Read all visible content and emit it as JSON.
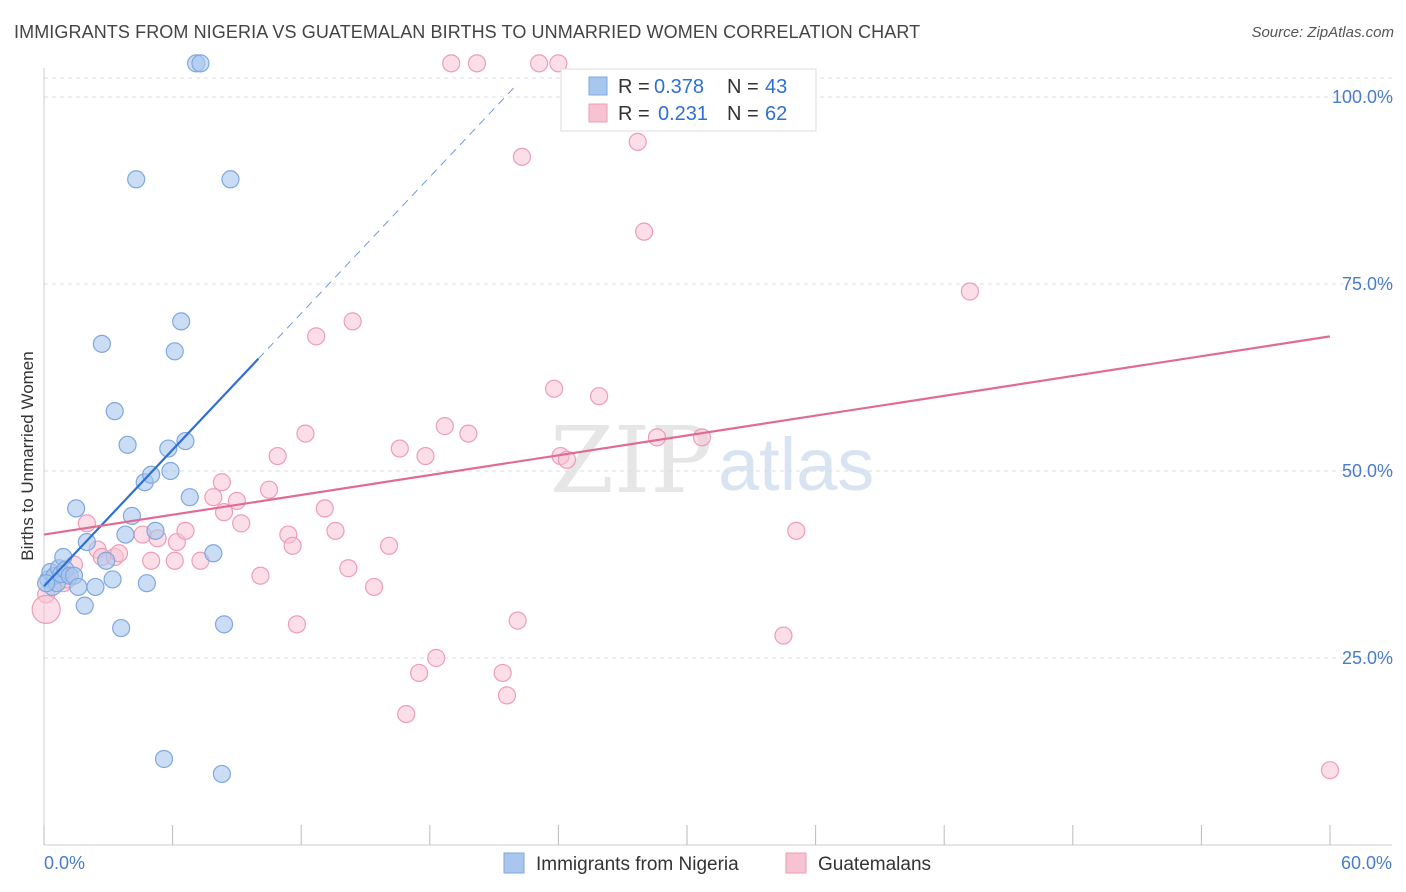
{
  "title": "IMMIGRANTS FROM NIGERIA VS GUATEMALAN BIRTHS TO UNMARRIED WOMEN CORRELATION CHART",
  "source": "Source: ZipAtlas.com",
  "watermark": {
    "zip": "ZIP",
    "atlas": "atlas"
  },
  "colors": {
    "blue_fill": "#a9c7ee",
    "blue_stroke": "#7ea8de",
    "blue_line": "#2f6fd6",
    "pink_fill": "#f7c3d3",
    "pink_stroke": "#ee9db6",
    "pink_line": "#e06b97",
    "grid": "#dddddd",
    "tick_text": "#4a7cc9"
  },
  "legend": {
    "rows": [
      {
        "r_label": "R =",
        "r_value": "0.378",
        "n_label": "N =",
        "n_value": "43"
      },
      {
        "r_label": "R =",
        "r_value": "0.231",
        "n_label": "N =",
        "n_value": "62"
      }
    ]
  },
  "bottom_legend": [
    "Immigrants from Nigeria",
    "Guatemalans"
  ],
  "chart_data": {
    "type": "scatter",
    "title": "IMMIGRANTS FROM NIGERIA VS GUATEMALAN BIRTHS TO UNMARRIED WOMEN CORRELATION CHART",
    "xlabel": "",
    "ylabel": "Births to Unmarried Women",
    "xlim": [
      0,
      60
    ],
    "ylim": [
      0,
      102
    ],
    "x_tick_labels": [
      "0.0%",
      "60.0%"
    ],
    "y_ticks": [
      25,
      50,
      75,
      100
    ],
    "y_tick_labels": [
      "25.0%",
      "50.0%",
      "75.0%",
      "100.0%"
    ],
    "grid": true,
    "legend_position": "top-center",
    "series": [
      {
        "name": "Immigrants from Nigeria",
        "R": 0.378,
        "N": 43,
        "points": [
          [
            0.2,
            35.5
          ],
          [
            0.3,
            36.5
          ],
          [
            0.4,
            34.5
          ],
          [
            0.5,
            36.0
          ],
          [
            0.6,
            35.0
          ],
          [
            0.7,
            37.0
          ],
          [
            0.8,
            36.2
          ],
          [
            0.9,
            38.5
          ],
          [
            1.0,
            36.8
          ],
          [
            1.2,
            36.0
          ],
          [
            1.4,
            36.0
          ],
          [
            1.5,
            45.0
          ],
          [
            1.6,
            34.5
          ],
          [
            1.9,
            32.0
          ],
          [
            2.0,
            40.5
          ],
          [
            2.4,
            34.5
          ],
          [
            2.7,
            67.0
          ],
          [
            2.9,
            38.0
          ],
          [
            3.2,
            35.5
          ],
          [
            3.3,
            58.0
          ],
          [
            3.6,
            29.0
          ],
          [
            3.8,
            41.5
          ],
          [
            3.9,
            53.5
          ],
          [
            4.1,
            44.0
          ],
          [
            4.3,
            89.0
          ],
          [
            4.7,
            48.5
          ],
          [
            4.8,
            35.0
          ],
          [
            5.0,
            49.5
          ],
          [
            5.2,
            42.0
          ],
          [
            5.6,
            11.5
          ],
          [
            5.8,
            53.0
          ],
          [
            5.9,
            50.0
          ],
          [
            6.1,
            66.0
          ],
          [
            6.4,
            70.0
          ],
          [
            6.6,
            54.0
          ],
          [
            6.8,
            46.5
          ],
          [
            7.1,
            104.5
          ],
          [
            7.3,
            104.5
          ],
          [
            7.9,
            39.0
          ],
          [
            8.3,
            9.5
          ],
          [
            8.4,
            29.5
          ],
          [
            8.7,
            89.0
          ],
          [
            0.1,
            35.0
          ]
        ],
        "trend": {
          "x0": 0,
          "y0": 34.6,
          "x1": 10,
          "y1": 65.0,
          "dashed_to_x": 22
        }
      },
      {
        "name": "Guatemalans",
        "R": 0.231,
        "N": 62,
        "points": [
          [
            0.1,
            33.5
          ],
          [
            0.9,
            35.0
          ],
          [
            1.1,
            35.5
          ],
          [
            1.4,
            37.5
          ],
          [
            2.0,
            43.0
          ],
          [
            2.5,
            39.5
          ],
          [
            2.7,
            38.5
          ],
          [
            3.3,
            38.5
          ],
          [
            3.5,
            39.0
          ],
          [
            4.6,
            41.5
          ],
          [
            5.0,
            38.0
          ],
          [
            5.3,
            41.0
          ],
          [
            6.1,
            38.0
          ],
          [
            6.2,
            40.5
          ],
          [
            6.6,
            42.0
          ],
          [
            7.3,
            38.0
          ],
          [
            7.9,
            46.5
          ],
          [
            8.3,
            48.5
          ],
          [
            8.4,
            44.5
          ],
          [
            9.0,
            46.0
          ],
          [
            9.2,
            43.0
          ],
          [
            10.1,
            36.0
          ],
          [
            10.5,
            47.5
          ],
          [
            10.9,
            52.0
          ],
          [
            11.4,
            41.5
          ],
          [
            11.6,
            40.0
          ],
          [
            11.8,
            29.5
          ],
          [
            12.2,
            55.0
          ],
          [
            12.7,
            68.0
          ],
          [
            13.1,
            45.0
          ],
          [
            13.6,
            42.0
          ],
          [
            14.2,
            37.0
          ],
          [
            14.4,
            70.0
          ],
          [
            15.4,
            34.5
          ],
          [
            16.1,
            40.0
          ],
          [
            16.6,
            53.0
          ],
          [
            16.9,
            17.5
          ],
          [
            17.5,
            23.0
          ],
          [
            17.8,
            52.0
          ],
          [
            18.3,
            25.0
          ],
          [
            18.7,
            56.0
          ],
          [
            19.8,
            55.0
          ],
          [
            21.4,
            23.0
          ],
          [
            21.6,
            20.0
          ],
          [
            22.1,
            30.0
          ],
          [
            22.3,
            92.0
          ],
          [
            23.1,
            104.5
          ],
          [
            23.8,
            61.0
          ],
          [
            24.1,
            52.0
          ],
          [
            24.4,
            51.5
          ],
          [
            25.9,
            60.0
          ],
          [
            27.7,
            94.0
          ],
          [
            28.0,
            82.0
          ],
          [
            28.6,
            54.5
          ],
          [
            30.7,
            54.5
          ],
          [
            34.5,
            28.0
          ],
          [
            35.1,
            42.0
          ],
          [
            43.2,
            74.0
          ],
          [
            60.0,
            10.0
          ],
          [
            19.0,
            104.5
          ],
          [
            20.2,
            104.5
          ],
          [
            24.0,
            104.5
          ]
        ],
        "trend": {
          "x0": 0,
          "y0": 41.5,
          "x1": 60,
          "y1": 68.0
        }
      }
    ]
  }
}
